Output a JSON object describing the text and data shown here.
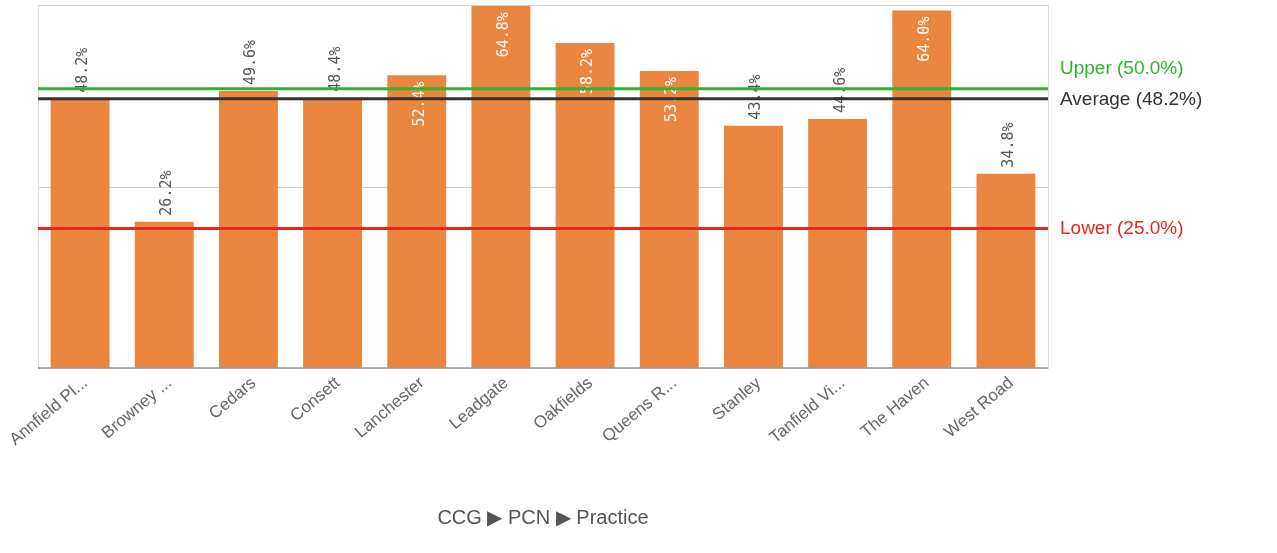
{
  "chart_data": {
    "type": "bar",
    "categories": [
      "Annfield Pl...",
      "Browney ...",
      "Cedars",
      "Consett",
      "Lanchester",
      "Leadgate",
      "Oakfields",
      "Queens R...",
      "Stanley",
      "Tanfield Vi...",
      "The Haven",
      "West Road"
    ],
    "values": [
      48.2,
      26.2,
      49.6,
      48.4,
      52.4,
      64.8,
      58.2,
      53.2,
      43.4,
      44.6,
      64.0,
      34.8
    ],
    "color": "#ea8640",
    "value_labels": [
      "48.2%",
      "26.2%",
      "49.6%",
      "48.4%",
      "52.4%",
      "64.8%",
      "58.2%",
      "53.2%",
      "43.4%",
      "44.6%",
      "64.0%",
      "34.8%"
    ],
    "ylim": [
      0,
      65
    ],
    "yticks": [
      {
        "value": 0,
        "label": null
      },
      {
        "value": 32.5,
        "label": null
      },
      {
        "value": 65,
        "label": null
      }
    ],
    "tick_labels": "x",
    "grid": "y",
    "ref_lines": [
      {
        "axis": "y",
        "value": 50.0,
        "label": "Upper (50.0%)",
        "color": "#2db52d"
      },
      {
        "axis": "y",
        "value": 48.2,
        "label": "Average (48.2%)",
        "color": "#333333"
      },
      {
        "axis": "y",
        "value": 25.0,
        "label": "Lower (25.0%)",
        "color": "#e8251f"
      }
    ],
    "annotations": [
      "CCG ▶ PCN ▶ Practice"
    ]
  }
}
